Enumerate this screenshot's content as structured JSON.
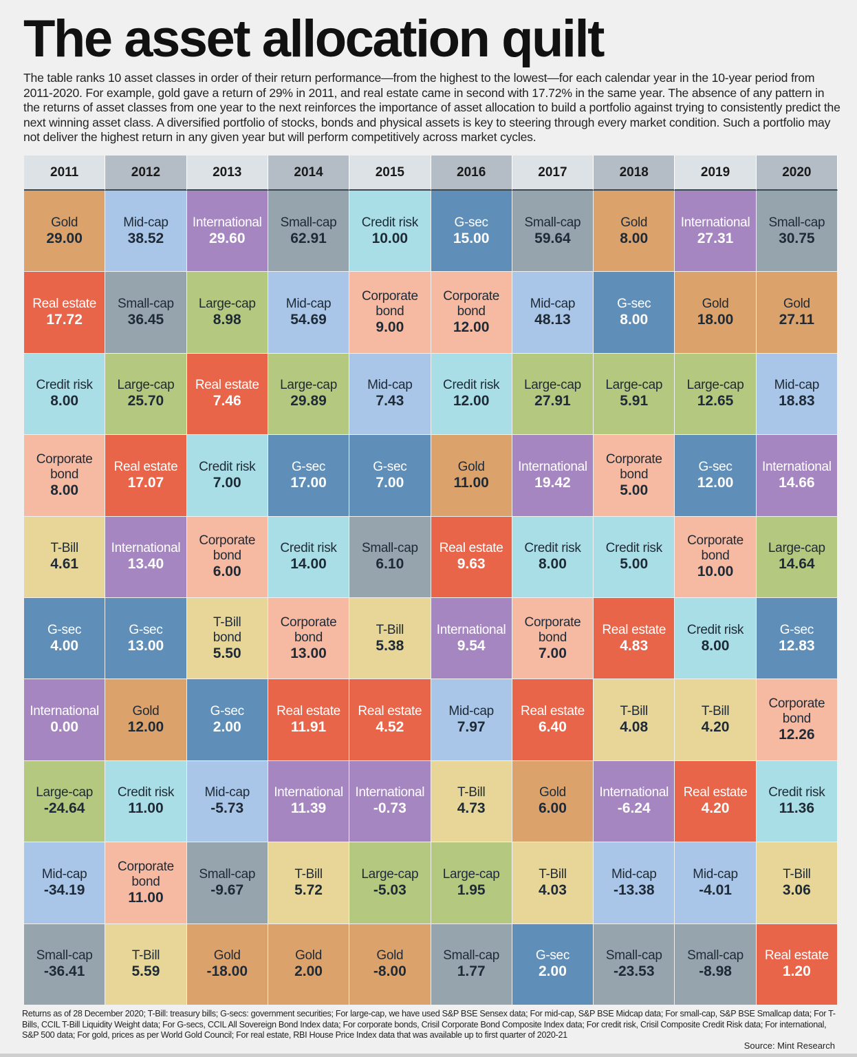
{
  "title": "The asset allocation quilt",
  "intro": "The table ranks 10 asset classes in order of their return performance—from the highest to the lowest—for each calendar year in the 10-year period from 2011-2020. For example, gold gave a return of 29% in 2011, and real estate came in second with 17.72% in the same year. The absence of any pattern in the returns of asset classes from one year to the next reinforces the importance of asset allocation to build a portfolio against trying to consistently predict the next winning asset class. A diversified portfolio of stocks, bonds and physical assets is key to steering through every market condition. Such a portfolio may not deliver the highest return in any given year but will perform competitively across market cycles.",
  "notes": "Returns as of 28 December 2020; T-Bill: treasury bills; G-secs: government securities; For large-cap, we have used S&P BSE Sensex data; For mid-cap, S&P BSE Midcap data; For small-cap, S&P BSE Smallcap data; For T-Bills, CCIL T-Bill Liquidity Weight data; For G-secs, CCIL All Sovereign Bond Index data; For corporate bonds, Crisil Corporate Bond Composite Index data; For credit risk, Crisil Composite Credit Risk data; For international, S&P 500 data; For gold, prices as per World Gold Council; For real estate, RBI House Price Index data that was available up to first quarter of 2020-21",
  "source": "Source: Mint Research",
  "chart_data": {
    "type": "table",
    "columns": [
      "2011",
      "2012",
      "2013",
      "2014",
      "2015",
      "2016",
      "2017",
      "2018",
      "2019",
      "2020"
    ],
    "asset_colors": {
      "Gold": "#dca26c",
      "Mid-cap": "#a9c5e7",
      "International": "#a686c0",
      "Small-cap": "#96a4ae",
      "Credit risk": "#aadee7",
      "Real estate": "#e8654a",
      "Large-cap": "#b5c880",
      "Corporate bond": "#f6b9a1",
      "G-sec": "#5f8fb9",
      "T-Bill": "#e7d697",
      "T-Bill bond": "#e7d697"
    },
    "white_text_assets": [
      "International",
      "Real estate",
      "G-sec"
    ],
    "rows": [
      [
        [
          "Gold",
          "29.00"
        ],
        [
          "Mid-cap",
          "38.52"
        ],
        [
          "International",
          "29.60"
        ],
        [
          "Small-cap",
          "62.91"
        ],
        [
          "Credit risk",
          "10.00"
        ],
        [
          "G-sec",
          "15.00"
        ],
        [
          "Small-cap",
          "59.64"
        ],
        [
          "Gold",
          "8.00"
        ],
        [
          "International",
          "27.31"
        ],
        [
          "Small-cap",
          "30.75"
        ]
      ],
      [
        [
          "Real estate",
          "17.72"
        ],
        [
          "Small-cap",
          "36.45"
        ],
        [
          "Large-cap",
          "8.98"
        ],
        [
          "Mid-cap",
          "54.69"
        ],
        [
          "Corporate bond",
          "9.00"
        ],
        [
          "Corporate bond",
          "12.00"
        ],
        [
          "Mid-cap",
          "48.13"
        ],
        [
          "G-sec",
          "8.00"
        ],
        [
          "Gold",
          "18.00"
        ],
        [
          "Gold",
          "27.11"
        ]
      ],
      [
        [
          "Credit risk",
          "8.00"
        ],
        [
          "Large-cap",
          "25.70"
        ],
        [
          "Real estate",
          "7.46"
        ],
        [
          "Large-cap",
          "29.89"
        ],
        [
          "Mid-cap",
          "7.43"
        ],
        [
          "Credit risk",
          "12.00"
        ],
        [
          "Large-cap",
          "27.91"
        ],
        [
          "Large-cap",
          "5.91"
        ],
        [
          "Large-cap",
          "12.65"
        ],
        [
          "Mid-cap",
          "18.83"
        ]
      ],
      [
        [
          "Corporate bond",
          "8.00"
        ],
        [
          "Real estate",
          "17.07"
        ],
        [
          "Credit risk",
          "7.00"
        ],
        [
          "G-sec",
          "17.00"
        ],
        [
          "G-sec",
          "7.00"
        ],
        [
          "Gold",
          "11.00"
        ],
        [
          "International",
          "19.42"
        ],
        [
          "Corporate bond",
          "5.00"
        ],
        [
          "G-sec",
          "12.00"
        ],
        [
          "International",
          "14.66"
        ]
      ],
      [
        [
          "T-Bill",
          "4.61"
        ],
        [
          "International",
          "13.40"
        ],
        [
          "Corporate bond",
          "6.00"
        ],
        [
          "Credit risk",
          "14.00"
        ],
        [
          "Small-cap",
          "6.10"
        ],
        [
          "Real estate",
          "9.63"
        ],
        [
          "Credit risk",
          "8.00"
        ],
        [
          "Credit risk",
          "5.00"
        ],
        [
          "Corporate bond",
          "10.00"
        ],
        [
          "Large-cap",
          "14.64"
        ]
      ],
      [
        [
          "G-sec",
          "4.00"
        ],
        [
          "G-sec",
          "13.00"
        ],
        [
          "T-Bill bond",
          "5.50"
        ],
        [
          "Corporate bond",
          "13.00"
        ],
        [
          "T-Bill",
          "5.38"
        ],
        [
          "International",
          "9.54"
        ],
        [
          "Corporate bond",
          "7.00"
        ],
        [
          "Real estate",
          "4.83"
        ],
        [
          "Credit risk",
          "8.00"
        ],
        [
          "G-sec",
          "12.83"
        ]
      ],
      [
        [
          "International",
          "0.00"
        ],
        [
          "Gold",
          "12.00"
        ],
        [
          "G-sec",
          "2.00"
        ],
        [
          "Real estate",
          "11.91"
        ],
        [
          "Real estate",
          "4.52"
        ],
        [
          "Mid-cap",
          "7.97"
        ],
        [
          "Real estate",
          "6.40"
        ],
        [
          "T-Bill",
          "4.08"
        ],
        [
          "T-Bill",
          "4.20"
        ],
        [
          "Corporate bond",
          "12.26"
        ]
      ],
      [
        [
          "Large-cap",
          "-24.64"
        ],
        [
          "Credit risk",
          "11.00"
        ],
        [
          "Mid-cap",
          "-5.73"
        ],
        [
          "International",
          "11.39"
        ],
        [
          "International",
          "-0.73"
        ],
        [
          "T-Bill",
          "4.73"
        ],
        [
          "Gold",
          "6.00"
        ],
        [
          "International",
          "-6.24"
        ],
        [
          "Real estate",
          "4.20"
        ],
        [
          "Credit risk",
          "11.36"
        ]
      ],
      [
        [
          "Mid-cap",
          "-34.19"
        ],
        [
          "Corporate bond",
          "11.00"
        ],
        [
          "Small-cap",
          "-9.67"
        ],
        [
          "T-Bill",
          "5.72"
        ],
        [
          "Large-cap",
          "-5.03"
        ],
        [
          "Large-cap",
          "1.95"
        ],
        [
          "T-Bill",
          "4.03"
        ],
        [
          "Mid-cap",
          "-13.38"
        ],
        [
          "Mid-cap",
          "-4.01"
        ],
        [
          "T-Bill",
          "3.06"
        ]
      ],
      [
        [
          "Small-cap",
          "-36.41"
        ],
        [
          "T-Bill",
          "5.59"
        ],
        [
          "Gold",
          "-18.00"
        ],
        [
          "Gold",
          "2.00"
        ],
        [
          "Gold",
          "-8.00"
        ],
        [
          "Small-cap",
          "1.77"
        ],
        [
          "G-sec",
          "2.00"
        ],
        [
          "Small-cap",
          "-23.53"
        ],
        [
          "Small-cap",
          "-8.98"
        ],
        [
          "Real estate",
          "1.20"
        ]
      ]
    ]
  }
}
